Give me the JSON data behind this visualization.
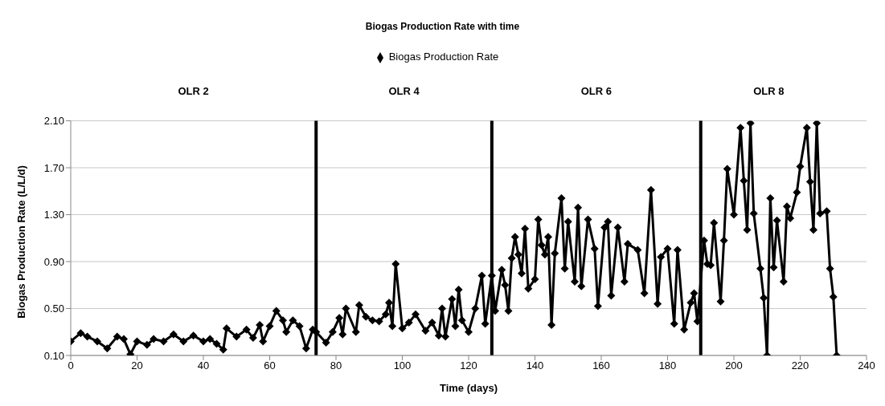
{
  "chart_data": {
    "type": "line",
    "title": "Biogas Production  Rate with time",
    "xlabel": "Time (days)",
    "ylabel": "Biogas Production Rate (L/L/d)",
    "x": [
      0,
      3,
      5,
      8,
      11,
      14,
      16,
      18,
      20,
      23,
      25,
      28,
      31,
      34,
      37,
      40,
      42,
      44,
      46,
      47,
      50,
      53,
      55,
      57,
      58,
      60,
      62,
      64,
      65,
      67,
      69,
      71,
      73,
      74,
      77,
      79,
      81,
      82,
      83,
      86,
      87,
      89,
      91,
      93,
      95,
      96,
      97,
      98,
      100,
      102,
      104,
      107,
      109,
      111,
      112,
      113,
      115,
      116,
      117,
      118,
      120,
      122,
      124,
      125,
      127,
      128,
      130,
      131,
      132,
      133,
      134,
      135,
      136,
      137,
      138,
      140,
      141,
      142,
      143,
      144,
      145,
      146,
      148,
      149,
      150,
      152,
      153,
      154,
      156,
      158,
      159,
      161,
      162,
      163,
      165,
      167,
      168,
      171,
      173,
      175,
      177,
      178,
      180,
      182,
      183,
      185,
      187,
      188,
      189,
      191,
      192,
      193,
      194,
      196,
      197,
      198,
      200,
      202,
      203,
      204,
      205,
      206,
      208,
      209,
      210,
      211,
      212,
      213,
      215,
      216,
      217,
      219,
      220,
      222,
      223,
      224,
      225,
      226,
      228,
      229,
      230,
      231
    ],
    "series": [
      {
        "name": "Biogas Production Rate",
        "color": "#000000",
        "values": [
          0.22,
          0.29,
          0.26,
          0.22,
          0.16,
          0.26,
          0.24,
          0.11,
          0.22,
          0.19,
          0.24,
          0.22,
          0.28,
          0.22,
          0.27,
          0.22,
          0.24,
          0.2,
          0.15,
          0.33,
          0.26,
          0.32,
          0.25,
          0.36,
          0.22,
          0.35,
          0.48,
          0.4,
          0.3,
          0.4,
          0.35,
          0.16,
          0.32,
          0.3,
          0.21,
          0.3,
          0.42,
          0.28,
          0.5,
          0.3,
          0.53,
          0.43,
          0.4,
          0.39,
          0.45,
          0.55,
          0.35,
          0.88,
          0.33,
          0.38,
          0.45,
          0.31,
          0.38,
          0.27,
          0.5,
          0.26,
          0.58,
          0.35,
          0.66,
          0.4,
          0.3,
          0.5,
          0.78,
          0.37,
          0.78,
          0.48,
          0.83,
          0.7,
          0.48,
          0.93,
          1.11,
          0.96,
          0.8,
          1.18,
          0.67,
          0.75,
          1.26,
          1.04,
          0.96,
          1.11,
          0.36,
          0.97,
          1.44,
          0.84,
          1.24,
          0.73,
          1.36,
          0.69,
          1.26,
          1.01,
          0.52,
          1.19,
          1.24,
          0.61,
          1.19,
          0.73,
          1.05,
          1.0,
          0.63,
          1.51,
          0.54,
          0.94,
          1.01,
          0.37,
          1.0,
          0.32,
          0.55,
          0.63,
          0.39,
          1.08,
          0.88,
          0.87,
          1.23,
          0.56,
          1.08,
          1.69,
          1.3,
          2.04,
          1.59,
          1.17,
          2.08,
          1.31,
          0.84,
          0.59,
          0.1,
          1.44,
          0.85,
          1.25,
          0.73,
          1.37,
          1.27,
          1.49,
          1.71,
          2.04,
          1.58,
          1.17,
          2.08,
          1.31,
          1.33,
          0.84,
          0.6,
          0.1
        ]
      }
    ],
    "xlim": [
      0,
      240
    ],
    "xticks": [
      0,
      20,
      40,
      60,
      80,
      100,
      120,
      140,
      160,
      180,
      200,
      220,
      240
    ],
    "ylim": [
      0.1,
      2.1
    ],
    "yticks": [
      {
        "value": 0.1,
        "label": "0.10"
      },
      {
        "value": 0.5,
        "label": "0.50"
      },
      {
        "value": 0.9,
        "label": "0.90"
      },
      {
        "value": 1.3,
        "label": "1.30"
      },
      {
        "value": 1.7,
        "label": "1.70"
      },
      {
        "value": 2.1,
        "label": "2.10"
      }
    ],
    "ref_lines": [
      {
        "axis": "x",
        "value": 74,
        "color": "#000000"
      },
      {
        "axis": "x",
        "value": 127,
        "color": "#000000"
      },
      {
        "axis": "x",
        "value": 190,
        "color": "#000000"
      }
    ],
    "annotations": [
      "OLR 2",
      "OLR 4",
      "OLR 6",
      "OLR 8"
    ],
    "grid": "y",
    "legend": "top",
    "marker": "diamond",
    "line_style": "solid"
  }
}
